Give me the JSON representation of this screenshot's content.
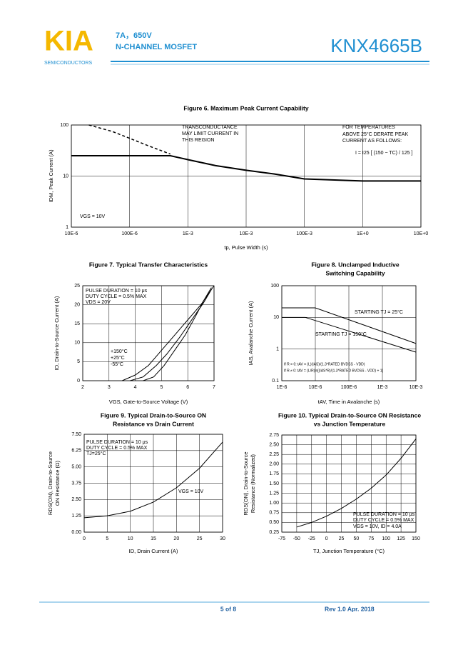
{
  "header": {
    "logo": "KIA",
    "logo_sub": "SEMICONDUCTORS",
    "rating": "7A，650V",
    "device_type": "N-CHANNEL MOSFET",
    "part_number": "KNX4665B"
  },
  "footer": {
    "page": "5 of 8",
    "revision": "Rev 1.0 Apr. 2018"
  },
  "chart_data": [
    {
      "type": "line",
      "title": [
        "Figure 6. Maximum Peak Current Capability"
      ],
      "xlabel": "tp, Pulse Width (s)",
      "ylabel": [
        "IDM, Peak Current (A)"
      ],
      "xlog": true,
      "ylog": true,
      "grid": true,
      "xlim": [
        1e-05,
        10
      ],
      "ylim": [
        1,
        100
      ],
      "xticks": [
        {
          "value": 1e-05,
          "label": "10E-6"
        },
        {
          "value": 0.0001,
          "label": "100E-6"
        },
        {
          "value": 0.001,
          "label": "1E-3"
        },
        {
          "value": 0.01,
          "label": "10E-3"
        },
        {
          "value": 0.1,
          "label": "100E-3"
        },
        {
          "value": 1,
          "label": "1E+0"
        },
        {
          "value": 10,
          "label": "10E+0"
        }
      ],
      "yticks": [
        1,
        10,
        100
      ],
      "annotations": [
        "TRANSCONDUCTANCE",
        "MAY LIMIT CURRENT IN",
        "THIS REGION",
        "FOR TEMPERATURES",
        "ABOVE 25°C DERATE PEAK",
        "CURRENT AS FOLLOWS:",
        "I = I25 [ (150 − TC) / 125 ]",
        "VGS = 10V"
      ],
      "series": [
        {
          "color": "#000000",
          "width": 2,
          "x": [
            1e-05,
            0.0001,
            0.0005,
            0.001,
            0.003,
            0.01,
            0.03,
            0.1,
            1,
            10
          ],
          "values": [
            25,
            25,
            25,
            21,
            16,
            13,
            11,
            8.8,
            8,
            8
          ]
        },
        {
          "color": "#000000",
          "width": 1.5,
          "dash": true,
          "x": [
            2e-05,
            5e-05,
            0.0001,
            0.0002,
            0.0005
          ],
          "values": [
            100,
            75,
            55,
            40,
            27
          ]
        }
      ]
    },
    {
      "type": "line",
      "title": [
        "Figure 7. Typical Transfer Characteristics"
      ],
      "xlabel": "VGS, Gate-to-Source Voltage (V)",
      "ylabel": [
        "ID, Drain-to-Source Current (A)"
      ],
      "grid": true,
      "xlim": [
        2,
        7
      ],
      "ylim": [
        0,
        25
      ],
      "xticks": [
        2,
        3,
        4,
        5,
        6,
        7
      ],
      "yticks": [
        0,
        5,
        10,
        15,
        20,
        25
      ],
      "annotations": [
        "PULSE DURATION = 10 μs",
        "DUTY CYCLE = 0.5% MAX",
        "VDS = 20V"
      ],
      "series": [
        {
          "name": "+150°C",
          "color": "#000000",
          "width": 1,
          "x": [
            3.5,
            4,
            4.5,
            5,
            5.5,
            6,
            6.5,
            7
          ],
          "values": [
            0,
            1.5,
            4,
            8,
            12,
            16,
            20,
            25
          ]
        },
        {
          "name": "+25°C",
          "color": "#000000",
          "width": 1,
          "x": [
            3.8,
            4.3,
            4.8,
            5.2,
            5.7,
            6.2,
            6.6,
            6.9
          ],
          "values": [
            0,
            1,
            4,
            7,
            11.5,
            16.5,
            20.5,
            24
          ]
        },
        {
          "name": "-55°C",
          "color": "#000000",
          "width": 1,
          "x": [
            4.3,
            4.7,
            5.1,
            5.5,
            5.9,
            6.3,
            6.6,
            6.9
          ],
          "values": [
            0,
            1,
            4,
            8,
            12,
            17,
            21,
            24.5
          ]
        }
      ]
    },
    {
      "type": "line",
      "title": [
        "Figure 8.   Unclamped Inductive",
        "Switching Capability"
      ],
      "xlabel": "tAV, Time in Avalanche (s)",
      "ylabel": [
        "IAS, Avalanche Current (A)"
      ],
      "xlog": true,
      "ylog": true,
      "grid": true,
      "xlim": [
        1e-06,
        0.01
      ],
      "ylim": [
        0.1,
        100
      ],
      "xticks": [
        {
          "value": 1e-06,
          "label": "1E-6"
        },
        {
          "value": 1e-05,
          "label": "10E-6"
        },
        {
          "value": 0.0001,
          "label": "100E-6"
        },
        {
          "value": 0.001,
          "label": "1E-3"
        },
        {
          "value": 0.01,
          "label": "10E-3"
        }
      ],
      "yticks": [
        0.1,
        1,
        10,
        100
      ],
      "annotations": [
        "If R = 0: tAV = (L)(IAS)/(1.3*RATED BVDSS - VDD)",
        "If R ≠ 0: tAV = (L/R)ln[(IAS*R)/(1.3*RATED BVDSS - VDD) + 1]"
      ],
      "series": [
        {
          "name": "STARTING TJ = 25°C",
          "color": "#000000",
          "width": 1,
          "x": [
            1e-06,
            1e-05,
            0.01
          ],
          "values": [
            20,
            20,
            1.5
          ]
        },
        {
          "name": "STARTING TJ = 150°C",
          "color": "#000000",
          "width": 1,
          "x": [
            1e-06,
            5e-06,
            0.01
          ],
          "values": [
            10,
            10,
            0.8
          ]
        }
      ]
    },
    {
      "type": "line",
      "title": [
        "Figure 9.   Typical Drain-to-Source ON",
        "Resistance vs Drain Current"
      ],
      "xlabel": "ID, Drain Current (A)",
      "ylabel": [
        "RDS(ON), Drain-to-Source",
        "ON Resistance (Ω)"
      ],
      "grid": true,
      "xlim": [
        0,
        30
      ],
      "ylim": [
        0,
        7.5
      ],
      "xticks": [
        0,
        5,
        10,
        15,
        20,
        25,
        30
      ],
      "yticks": [
        {
          "value": 0,
          "label": "0.00"
        },
        {
          "value": 1.25,
          "label": "1.25"
        },
        {
          "value": 2.5,
          "label": "2.50"
        },
        {
          "value": 3.75,
          "label": "3.75"
        },
        {
          "value": 5,
          "label": "5.00"
        },
        {
          "value": 6.25,
          "label": "6.25"
        },
        {
          "value": 7.5,
          "label": "7.50"
        }
      ],
      "annotations": [
        "PULSE DURATION = 10 μs",
        "DUTY CYCLE = 0.5% MAX",
        "TJ=25°C",
        "VGS = 10V"
      ],
      "series": [
        {
          "color": "#000000",
          "width": 1,
          "x": [
            0,
            5,
            10,
            15,
            20,
            25,
            30
          ],
          "values": [
            1.1,
            1.25,
            1.6,
            2.3,
            3.4,
            4.9,
            6.9
          ]
        }
      ]
    },
    {
      "type": "line",
      "title": [
        "Figure 10.  Typical Drain-to-Source ON Resistance",
        "vs Junction Temperature"
      ],
      "xlabel": "TJ, Junction Temperature (°C)",
      "ylabel": [
        "RDS(ON), Drain-to-Source",
        "Resistance (Normalized)"
      ],
      "grid": true,
      "xlim": [
        -75,
        150
      ],
      "ylim": [
        0.25,
        2.75
      ],
      "xticks": [
        -75,
        -50,
        -25,
        0,
        25,
        50,
        75,
        100,
        125,
        150
      ],
      "yticks": [
        {
          "value": 0.25,
          "label": "0.25"
        },
        {
          "value": 0.5,
          "label": "0.50"
        },
        {
          "value": 0.75,
          "label": "0.75"
        },
        {
          "value": 1,
          "label": "1.00"
        },
        {
          "value": 1.25,
          "label": "1.25"
        },
        {
          "value": 1.5,
          "label": "1.50"
        },
        {
          "value": 1.75,
          "label": "1.75"
        },
        {
          "value": 2,
          "label": "2.00"
        },
        {
          "value": 2.25,
          "label": "2.25"
        },
        {
          "value": 2.5,
          "label": "2.50"
        },
        {
          "value": 2.75,
          "label": "2.75"
        }
      ],
      "annotations": [
        "PULSE DURATION = 10 μs",
        "DUTY CYCLE = 0.5% MAX",
        "VGS = 10V, ID = 4.0A"
      ],
      "series": [
        {
          "color": "#000000",
          "width": 1,
          "x": [
            -50,
            -25,
            0,
            25,
            50,
            75,
            100,
            125,
            150
          ],
          "values": [
            0.38,
            0.5,
            0.66,
            0.86,
            1.1,
            1.38,
            1.72,
            2.15,
            2.65
          ]
        }
      ]
    }
  ]
}
